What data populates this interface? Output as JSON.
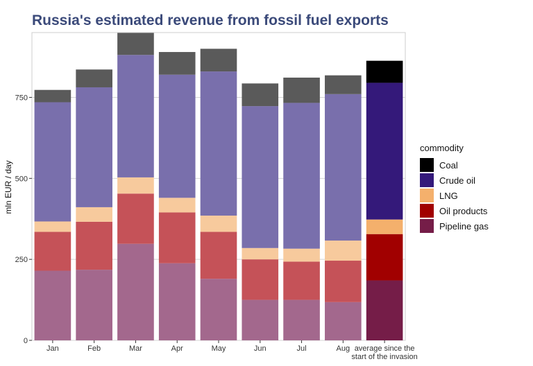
{
  "chart_data": {
    "type": "bar",
    "stacked": true,
    "title": "Russia's estimated revenue from fossil fuel exports",
    "xlabel": "",
    "ylabel": "mln EUR / day",
    "ylim": [
      0,
      950
    ],
    "yticks": [
      0,
      250,
      500,
      750
    ],
    "grid": true,
    "legend_position": "right",
    "legend_title": "commodity",
    "categories": [
      "Jan",
      "Feb",
      "Mar",
      "Apr",
      "May",
      "Jun",
      "Jul",
      "Aug",
      "average since the start of the invasion"
    ],
    "series": [
      {
        "name": "Pipeline gas",
        "values": [
          215,
          218,
          298,
          238,
          190,
          125,
          125,
          118,
          185
        ],
        "color": "#9e5f86",
        "highlight_color": "#751d48"
      },
      {
        "name": "Oil products",
        "values": [
          120,
          148,
          155,
          157,
          145,
          125,
          118,
          128,
          143
        ],
        "color": "#c2484e",
        "highlight_color": "#a10000"
      },
      {
        "name": "LNG",
        "values": [
          32,
          45,
          50,
          45,
          50,
          35,
          40,
          62,
          45
        ],
        "color": "#f7c797",
        "highlight_color": "#f4b06c"
      },
      {
        "name": "Crude oil",
        "values": [
          368,
          370,
          378,
          380,
          445,
          438,
          450,
          452,
          422
        ],
        "color": "#7166a7",
        "highlight_color": "#34197a"
      },
      {
        "name": "Coal",
        "values": [
          38,
          55,
          68,
          70,
          70,
          70,
          78,
          58,
          68
        ],
        "color": "#505050",
        "highlight_color": "#000000"
      }
    ],
    "highlight_category_index": 8
  },
  "legend_order": [
    "Coal",
    "Crude oil",
    "LNG",
    "Oil products",
    "Pipeline gas"
  ]
}
